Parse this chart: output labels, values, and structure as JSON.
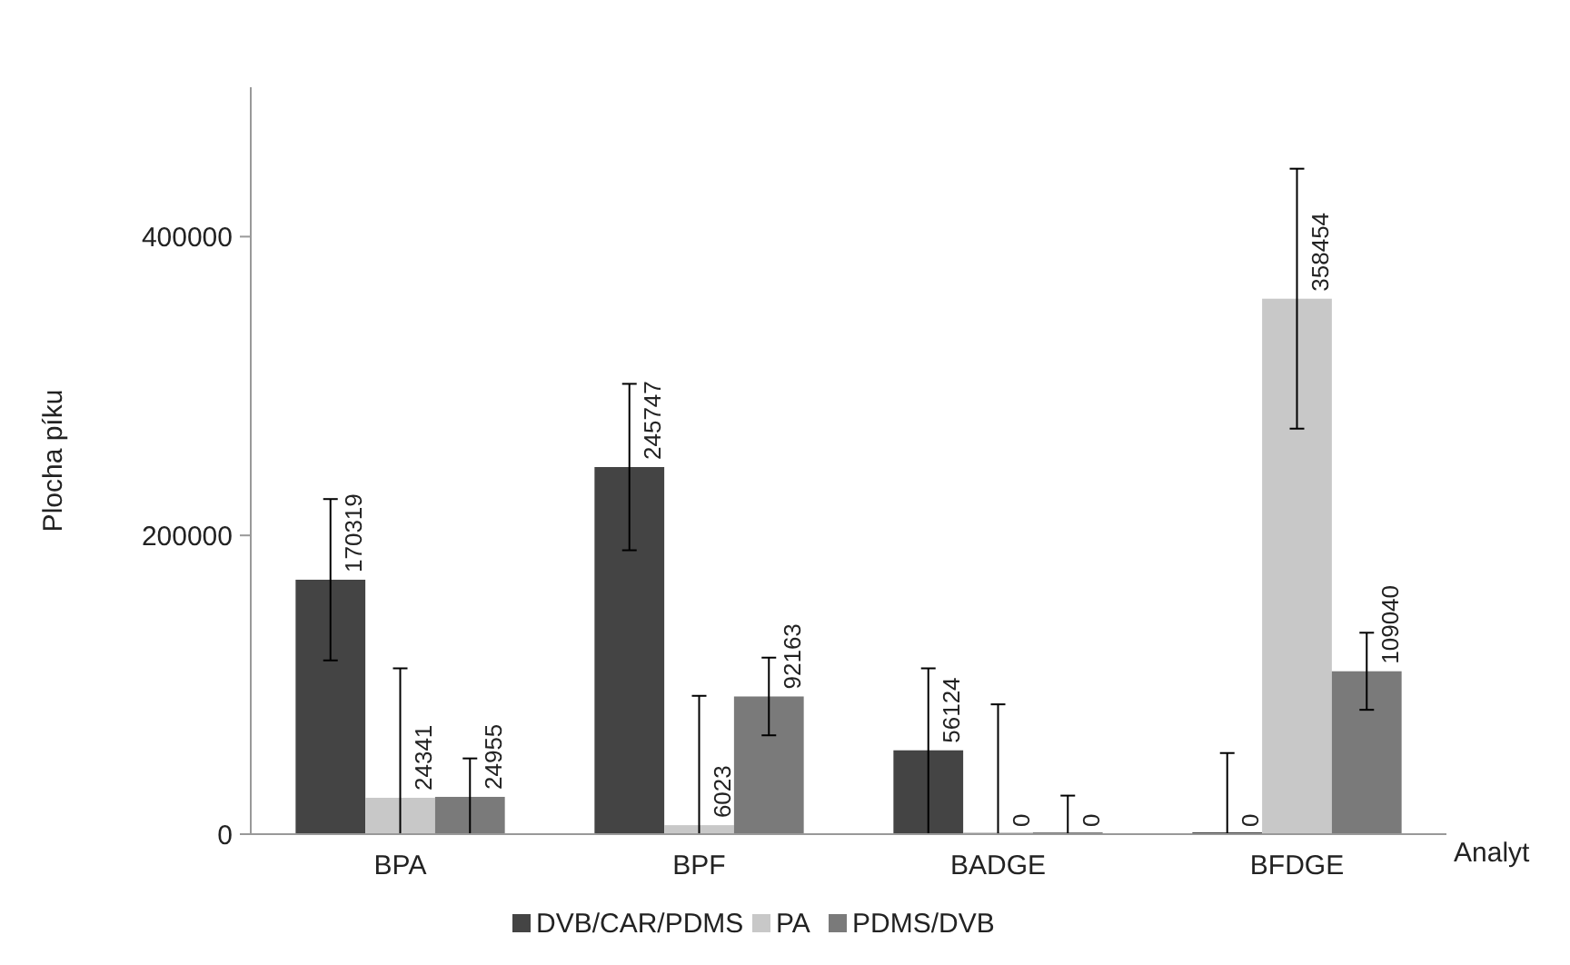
{
  "chart_data": {
    "type": "bar",
    "xlabel": "Analyt",
    "ylabel": "Plocha píku",
    "categories": [
      "BPA",
      "BPF",
      "BADGE",
      "BFDGE"
    ],
    "series": [
      {
        "name": "DVB/CAR/PDMS",
        "color": "#444444",
        "values": [
          170319,
          245747,
          56124,
          0
        ],
        "errors": [
          54000,
          55700,
          [
            0,
            111000
          ],
          [
            0,
            54300
          ]
        ]
      },
      {
        "name": "PA",
        "color": "#c8c8c8",
        "values": [
          24341,
          6023,
          0,
          358454
        ],
        "errors": [
          [
            0,
            111000
          ],
          [
            0,
            92600
          ],
          [
            0,
            86900
          ],
          87000
        ]
      },
      {
        "name": "PDMS/DVB",
        "color": "#7a7a7a",
        "values": [
          24955,
          92163,
          0,
          109040
        ],
        "errors": [
          [
            0,
            50700
          ],
          26000,
          [
            0,
            25800
          ],
          25800
        ]
      }
    ],
    "ylim": [
      0,
      500000
    ],
    "yticks": [
      0,
      200000,
      400000
    ],
    "grid": false,
    "legend": "bottom",
    "data_labels": true
  }
}
